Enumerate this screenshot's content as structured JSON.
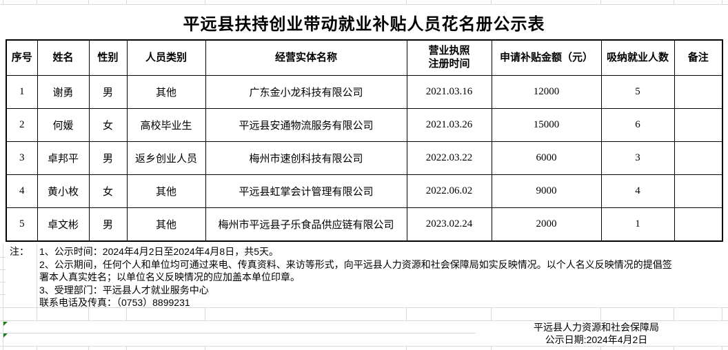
{
  "title": "平远县扶持创业带动就业补贴人员花名册公示表",
  "table": {
    "headers": [
      "序号",
      "姓名",
      "性别",
      "人员类别",
      "经营实体名称",
      "营业执照\n注册时间",
      "申请补贴金额（元）",
      "吸纳就业人数",
      "备注"
    ],
    "rows": [
      [
        "1",
        "谢勇",
        "男",
        "其他",
        "广东金小龙科技有限公司",
        "2021.03.16",
        "12000",
        "5",
        ""
      ],
      [
        "2",
        "何媛",
        "女",
        "高校毕业生",
        "平远县安通物流服务有限公司",
        "2021.03.26",
        "15000",
        "6",
        ""
      ],
      [
        "3",
        "卓邦平",
        "男",
        "返乡创业人员",
        "梅州市速创科技有限公司",
        "2022.03.22",
        "6000",
        "3",
        ""
      ],
      [
        "4",
        "黄小枚",
        "女",
        "其他",
        "平远县虹掌会计管理有限公司",
        "2022.06.02",
        "9000",
        "4",
        ""
      ],
      [
        "5",
        "卓文彬",
        "男",
        "其他",
        "梅州市平远县子乐食品供应链有限公司",
        "2023.02.24",
        "2000",
        "1",
        ""
      ]
    ]
  },
  "notes": {
    "label": "注：",
    "lines": [
      "1、公示时间：2024年4月2日至2024年4月8日，共5天。",
      "2、公示期间，任何个人和单位均可通过来电、传真资料、来访等形式，向平远县人力资源和社会保障局如实反映情况。以个人名义反映情况的提倡签",
      "署本人真实姓名；以单位名义反映情况的应加盖本单位印章。",
      "3、受理部门：平远县人才就业服务中心",
      "联系电话及传真：（0753）8899231"
    ]
  },
  "footer": {
    "org": "平远县人力资源和社会保障局",
    "date": "公示日期:2024年4月2日"
  },
  "colors": {
    "table_border": "#000000",
    "gridline": "#d9d9d9",
    "error_marker_green": "#1a7f1a"
  }
}
